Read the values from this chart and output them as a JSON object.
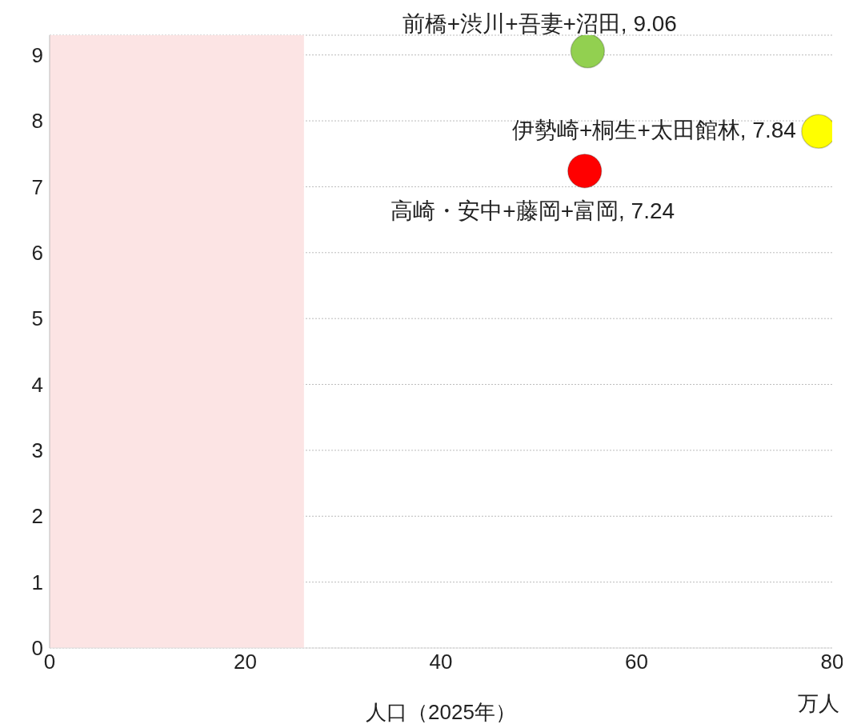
{
  "chart_data": {
    "type": "scatter",
    "xlabel": "人口（2025年）",
    "annotations": [
      "万人"
    ],
    "xlim": [
      0,
      80
    ],
    "xticks": [
      0,
      20,
      40,
      60,
      80
    ],
    "ylim": [
      0,
      9.3
    ],
    "yticks": [
      0,
      1,
      2,
      3,
      4,
      5,
      6,
      7,
      8,
      9
    ],
    "grid": "y",
    "marker": "circle",
    "bands": [
      {
        "axis": "x",
        "from": 0,
        "to": 26,
        "color": "#fce4e4"
      }
    ],
    "series": [
      {
        "color": "#92d050",
        "x": [
          55
        ],
        "values": [
          9.06
        ],
        "value_labels": [
          "前橋+渋川+吾妻+沼田, 9.06"
        ]
      },
      {
        "color": "#ffff00",
        "x": [
          78.6
        ],
        "values": [
          7.84
        ],
        "value_labels": [
          "伊勢崎+桐生+太田館林, 7.84"
        ]
      },
      {
        "color": "#ff0000",
        "x": [
          54.7
        ],
        "values": [
          7.24
        ],
        "value_labels": [
          "高崎・安中+藤岡+富岡, 7.24"
        ]
      }
    ]
  }
}
